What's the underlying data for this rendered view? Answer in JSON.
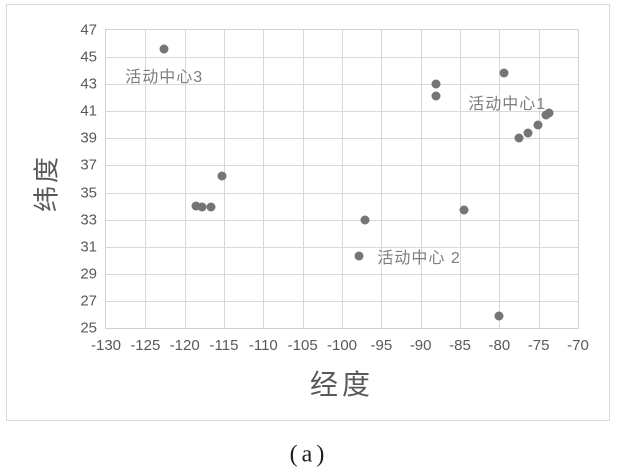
{
  "figure": {
    "caption": "(a)"
  },
  "colors": {
    "marker": "#757575",
    "gridline": "#d9d9d9",
    "tick_text": "#595959",
    "axis_title_text": "#595959",
    "annotation_text": "#7d7d7d",
    "frame_border": "#d9d9d9"
  },
  "chart_data": {
    "type": "scatter",
    "title": "",
    "xlabel": "经度",
    "ylabel": "纬度",
    "xlim": [
      -130,
      -70
    ],
    "ylim": [
      25,
      47
    ],
    "x_ticks": [
      -130,
      -125,
      -120,
      -115,
      -110,
      -105,
      -100,
      -95,
      -90,
      -85,
      -80,
      -75,
      -70
    ],
    "y_ticks": [
      25,
      27,
      29,
      31,
      33,
      35,
      37,
      39,
      41,
      43,
      45,
      47
    ],
    "grid": true,
    "legend": false,
    "points": [
      [
        -122.6,
        45.6
      ],
      [
        -118.5,
        34.0
      ],
      [
        -117.8,
        33.9
      ],
      [
        -116.6,
        33.9
      ],
      [
        -115.2,
        36.2
      ],
      [
        -97.8,
        30.3
      ],
      [
        -97.1,
        33.0
      ],
      [
        -88.0,
        43.0
      ],
      [
        -88.0,
        42.1
      ],
      [
        -84.5,
        33.7
      ],
      [
        -80.1,
        25.9
      ],
      [
        -79.4,
        43.8
      ],
      [
        -77.5,
        39.0
      ],
      [
        -76.4,
        39.4
      ],
      [
        -75.1,
        40.0
      ],
      [
        -74.1,
        40.7
      ],
      [
        -73.7,
        40.9
      ]
    ],
    "annotations": [
      {
        "text": "活动中心3",
        "x": -122.6,
        "y": 43.7
      },
      {
        "text": "活动中心 2",
        "x": -90.2,
        "y": 30.3
      },
      {
        "text": "活动中心1",
        "x": -79.0,
        "y": 41.7
      }
    ]
  }
}
